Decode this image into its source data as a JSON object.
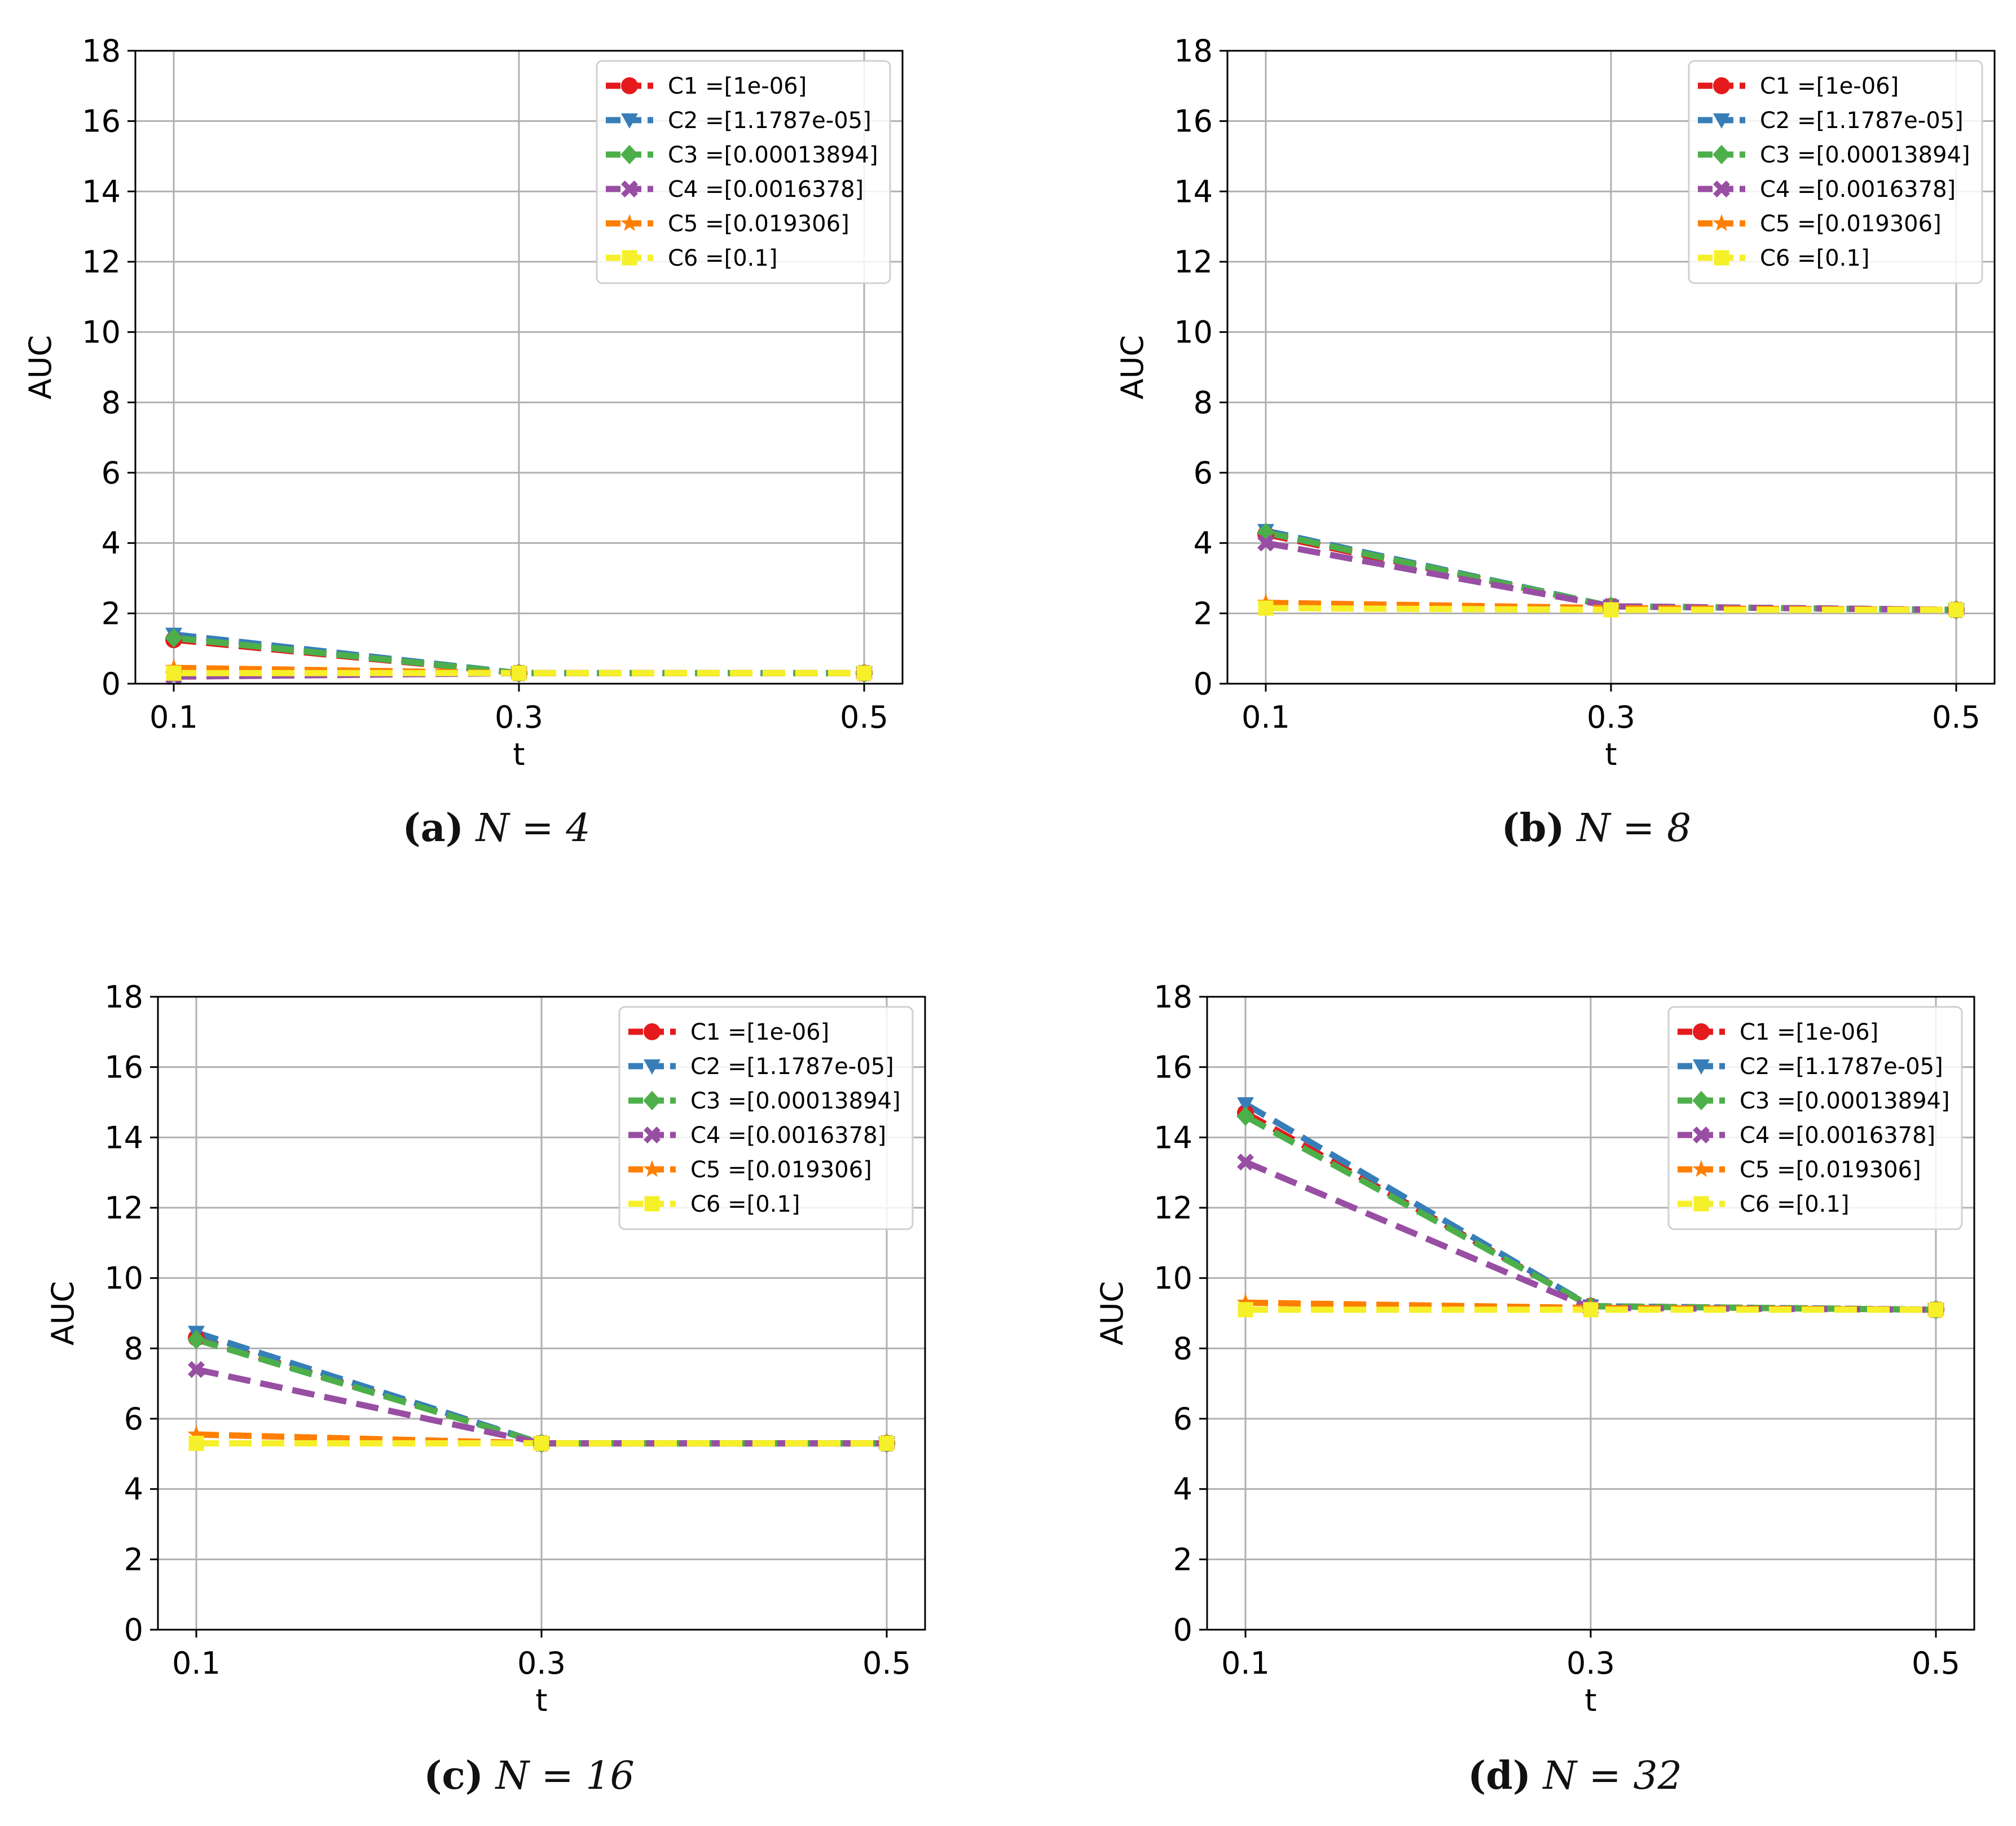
{
  "colors": {
    "C1": "#e41a1c",
    "C2": "#377eb8",
    "C3": "#4daf4a",
    "C4": "#984ea3",
    "C5": "#ff7f00",
    "C6": "#f5f02a",
    "grid": "#b0b0b0",
    "axis": "#000000"
  },
  "chart_data": [
    {
      "type": "line",
      "title": "",
      "caption": {
        "label": "(a)",
        "math": "N = 4"
      },
      "xlabel": "t",
      "ylabel": "AUC",
      "x": [
        0.1,
        0.3,
        0.5
      ],
      "x_tick_labels": [
        "0.1",
        "0.3",
        "0.5"
      ],
      "y_ticks": [
        0,
        2,
        4,
        6,
        8,
        10,
        12,
        14,
        16,
        18
      ],
      "ylim": [
        0,
        18
      ],
      "grid": true,
      "legend_position": "top-right",
      "series": [
        {
          "id": "C1",
          "name": "C1 =[1e-06]",
          "marker": "circle",
          "values": [
            1.25,
            0.3,
            0.3
          ]
        },
        {
          "id": "C2",
          "name": "C2 =[1.1787e-05]",
          "marker": "triangle-down",
          "values": [
            1.4,
            0.3,
            0.3
          ]
        },
        {
          "id": "C3",
          "name": "C3 =[0.00013894]",
          "marker": "diamond",
          "values": [
            1.3,
            0.3,
            0.3
          ]
        },
        {
          "id": "C4",
          "name": "C4 =[0.0016378]",
          "marker": "x",
          "values": [
            0.2,
            0.3,
            0.3
          ]
        },
        {
          "id": "C5",
          "name": "C5 =[0.019306]",
          "marker": "star",
          "values": [
            0.45,
            0.3,
            0.3
          ]
        },
        {
          "id": "C6",
          "name": "C6 =[0.1]",
          "marker": "square",
          "values": [
            0.3,
            0.3,
            0.3
          ]
        }
      ]
    },
    {
      "type": "line",
      "title": "",
      "caption": {
        "label": "(b)",
        "math": "N = 8"
      },
      "xlabel": "t",
      "ylabel": "AUC",
      "x": [
        0.1,
        0.3,
        0.5
      ],
      "x_tick_labels": [
        "0.1",
        "0.3",
        "0.5"
      ],
      "y_ticks": [
        0,
        2,
        4,
        6,
        8,
        10,
        12,
        14,
        16,
        18
      ],
      "ylim": [
        0,
        18
      ],
      "grid": true,
      "legend_position": "top-right",
      "series": [
        {
          "id": "C1",
          "name": "C1 =[1e-06]",
          "marker": "circle",
          "values": [
            4.25,
            2.2,
            2.1
          ]
        },
        {
          "id": "C2",
          "name": "C2 =[1.1787e-05]",
          "marker": "triangle-down",
          "values": [
            4.35,
            2.2,
            2.1
          ]
        },
        {
          "id": "C3",
          "name": "C3 =[0.00013894]",
          "marker": "diamond",
          "values": [
            4.3,
            2.2,
            2.1
          ]
        },
        {
          "id": "C4",
          "name": "C4 =[0.0016378]",
          "marker": "x",
          "values": [
            4.0,
            2.2,
            2.1
          ]
        },
        {
          "id": "C5",
          "name": "C5 =[0.019306]",
          "marker": "star",
          "values": [
            2.3,
            2.15,
            2.1
          ]
        },
        {
          "id": "C6",
          "name": "C6 =[0.1]",
          "marker": "square",
          "values": [
            2.15,
            2.1,
            2.1
          ]
        }
      ]
    },
    {
      "type": "line",
      "title": "",
      "caption": {
        "label": "(c)",
        "math": "N = 16"
      },
      "xlabel": "t",
      "ylabel": "AUC",
      "x": [
        0.1,
        0.3,
        0.5
      ],
      "x_tick_labels": [
        "0.1",
        "0.3",
        "0.5"
      ],
      "y_ticks": [
        0,
        2,
        4,
        6,
        8,
        10,
        12,
        14,
        16,
        18
      ],
      "ylim": [
        0,
        18
      ],
      "grid": true,
      "legend_position": "top-right",
      "series": [
        {
          "id": "C1",
          "name": "C1 =[1e-06]",
          "marker": "circle",
          "values": [
            8.3,
            5.3,
            5.3
          ]
        },
        {
          "id": "C2",
          "name": "C2 =[1.1787e-05]",
          "marker": "triangle-down",
          "values": [
            8.45,
            5.3,
            5.3
          ]
        },
        {
          "id": "C3",
          "name": "C3 =[0.00013894]",
          "marker": "diamond",
          "values": [
            8.25,
            5.3,
            5.3
          ]
        },
        {
          "id": "C4",
          "name": "C4 =[0.0016378]",
          "marker": "x",
          "values": [
            7.4,
            5.3,
            5.3
          ]
        },
        {
          "id": "C5",
          "name": "C5 =[0.019306]",
          "marker": "star",
          "values": [
            5.55,
            5.3,
            5.3
          ]
        },
        {
          "id": "C6",
          "name": "C6 =[0.1]",
          "marker": "square",
          "values": [
            5.3,
            5.3,
            5.3
          ]
        }
      ]
    },
    {
      "type": "line",
      "title": "",
      "caption": {
        "label": "(d)",
        "math": "N = 32"
      },
      "xlabel": "t",
      "ylabel": "AUC",
      "x": [
        0.1,
        0.3,
        0.5
      ],
      "x_tick_labels": [
        "0.1",
        "0.3",
        "0.5"
      ],
      "y_ticks": [
        0,
        2,
        4,
        6,
        8,
        10,
        12,
        14,
        16,
        18
      ],
      "ylim": [
        0,
        18
      ],
      "grid": true,
      "legend_position": "top-right",
      "series": [
        {
          "id": "C1",
          "name": "C1 =[1e-06]",
          "marker": "circle",
          "values": [
            14.7,
            9.2,
            9.1
          ]
        },
        {
          "id": "C2",
          "name": "C2 =[1.1787e-05]",
          "marker": "triangle-down",
          "values": [
            14.95,
            9.2,
            9.1
          ]
        },
        {
          "id": "C3",
          "name": "C3 =[0.00013894]",
          "marker": "diamond",
          "values": [
            14.6,
            9.2,
            9.1
          ]
        },
        {
          "id": "C4",
          "name": "C4 =[0.0016378]",
          "marker": "x",
          "values": [
            13.3,
            9.15,
            9.1
          ]
        },
        {
          "id": "C5",
          "name": "C5 =[0.019306]",
          "marker": "star",
          "values": [
            9.3,
            9.15,
            9.1
          ]
        },
        {
          "id": "C6",
          "name": "C6 =[0.1]",
          "marker": "square",
          "values": [
            9.1,
            9.1,
            9.1
          ]
        }
      ]
    }
  ]
}
